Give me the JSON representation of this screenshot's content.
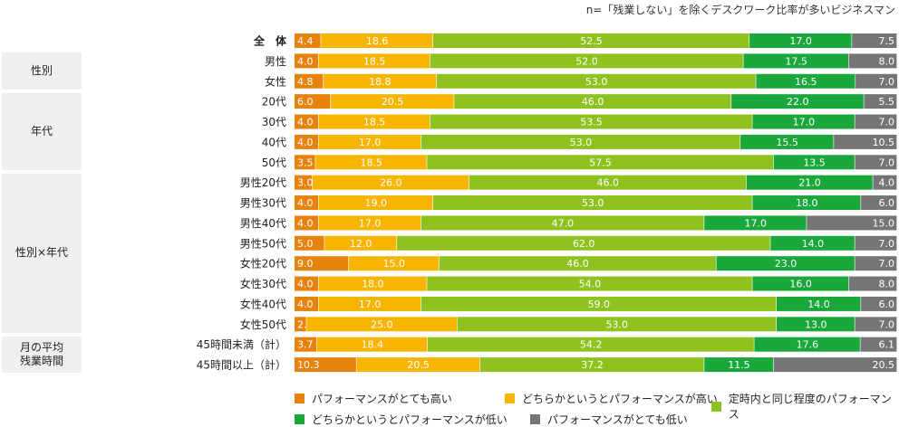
{
  "chart_data": {
    "type": "bar",
    "orientation": "horizontal",
    "stacked": true,
    "note": "n=「残業しない」を除くデスクワーク比率が多いビジネスマン",
    "xlim": [
      0,
      100
    ],
    "grid": false,
    "legend_placement": "bottom",
    "categories": [
      "全　体",
      "男性",
      "女性",
      "20代",
      "30代",
      "40代",
      "50代",
      "男性20代",
      "男性30代",
      "男性40代",
      "男性50代",
      "女性20代",
      "女性30代",
      "女性40代",
      "女性50代",
      "45時間未満（計）",
      "45時間以上（計）"
    ],
    "groups": [
      {
        "label": "性別",
        "first": 1,
        "last": 2
      },
      {
        "label": "年代",
        "first": 3,
        "last": 6
      },
      {
        "label": "性別×年代",
        "first": 7,
        "last": 14
      },
      {
        "label": "月の平均\n残業時間",
        "first": 15,
        "last": 16
      }
    ],
    "series": [
      {
        "name": "パフォーマンスがとても高い",
        "color": "#e8820e",
        "values": [
          4.4,
          4.0,
          4.8,
          6.0,
          4.0,
          4.0,
          3.5,
          3.0,
          4.0,
          4.0,
          5.0,
          9.0,
          4.0,
          4.0,
          2.0,
          3.7,
          10.3
        ]
      },
      {
        "name": "どちらかというとパフォーマンスが高い",
        "color": "#f7b400",
        "values": [
          18.6,
          18.5,
          18.8,
          20.5,
          18.5,
          17.0,
          18.5,
          26.0,
          19.0,
          17.0,
          12.0,
          15.0,
          18.0,
          17.0,
          25.0,
          18.4,
          20.5
        ]
      },
      {
        "name": "定時内と同じ程度のパフォーマンス",
        "color": "#8ec21f",
        "values": [
          52.5,
          52.0,
          53.0,
          46.0,
          53.5,
          53.0,
          57.5,
          46.0,
          53.0,
          47.0,
          62.0,
          46.0,
          54.0,
          59.0,
          53.0,
          54.2,
          37.2
        ]
      },
      {
        "name": "どちらかというとパフォーマンスが低い",
        "color": "#1aa83c",
        "values": [
          17.0,
          17.5,
          16.5,
          22.0,
          17.0,
          15.5,
          13.5,
          21.0,
          18.0,
          17.0,
          14.0,
          23.0,
          16.0,
          14.0,
          13.0,
          17.6,
          11.5
        ]
      },
      {
        "name": "パフォーマンスがとても低い",
        "color": "#757575",
        "values": [
          7.5,
          8.0,
          7.0,
          5.5,
          7.0,
          10.5,
          7.0,
          4.0,
          6.0,
          15.0,
          7.0,
          7.0,
          8.0,
          6.0,
          7.0,
          6.1,
          20.5
        ]
      }
    ]
  }
}
